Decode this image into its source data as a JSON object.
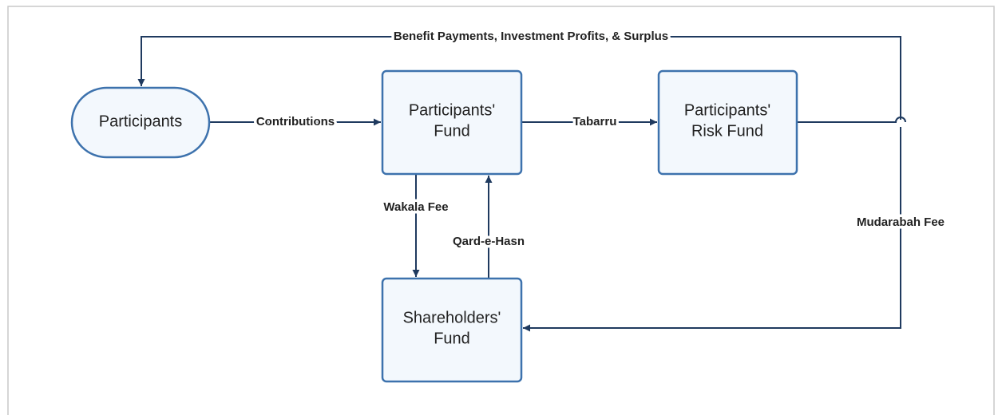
{
  "nodes": [
    {
      "lines": [
        "Participants"
      ]
    },
    {
      "lines": [
        "Participants'",
        "Fund"
      ]
    },
    {
      "lines": [
        "Participants'",
        "Risk Fund"
      ]
    },
    {
      "lines": [
        "Shareholders'",
        "Fund"
      ]
    }
  ],
  "edges": [
    {
      "label": "Benefit Payments, Investment Profits, & Surplus"
    },
    {
      "label": "Contributions"
    },
    {
      "label": "Tabarru"
    },
    {
      "label": "Wakala Fee"
    },
    {
      "label": "Qard-e-Hasn"
    },
    {
      "label": "Mudarabah Fee"
    }
  ]
}
